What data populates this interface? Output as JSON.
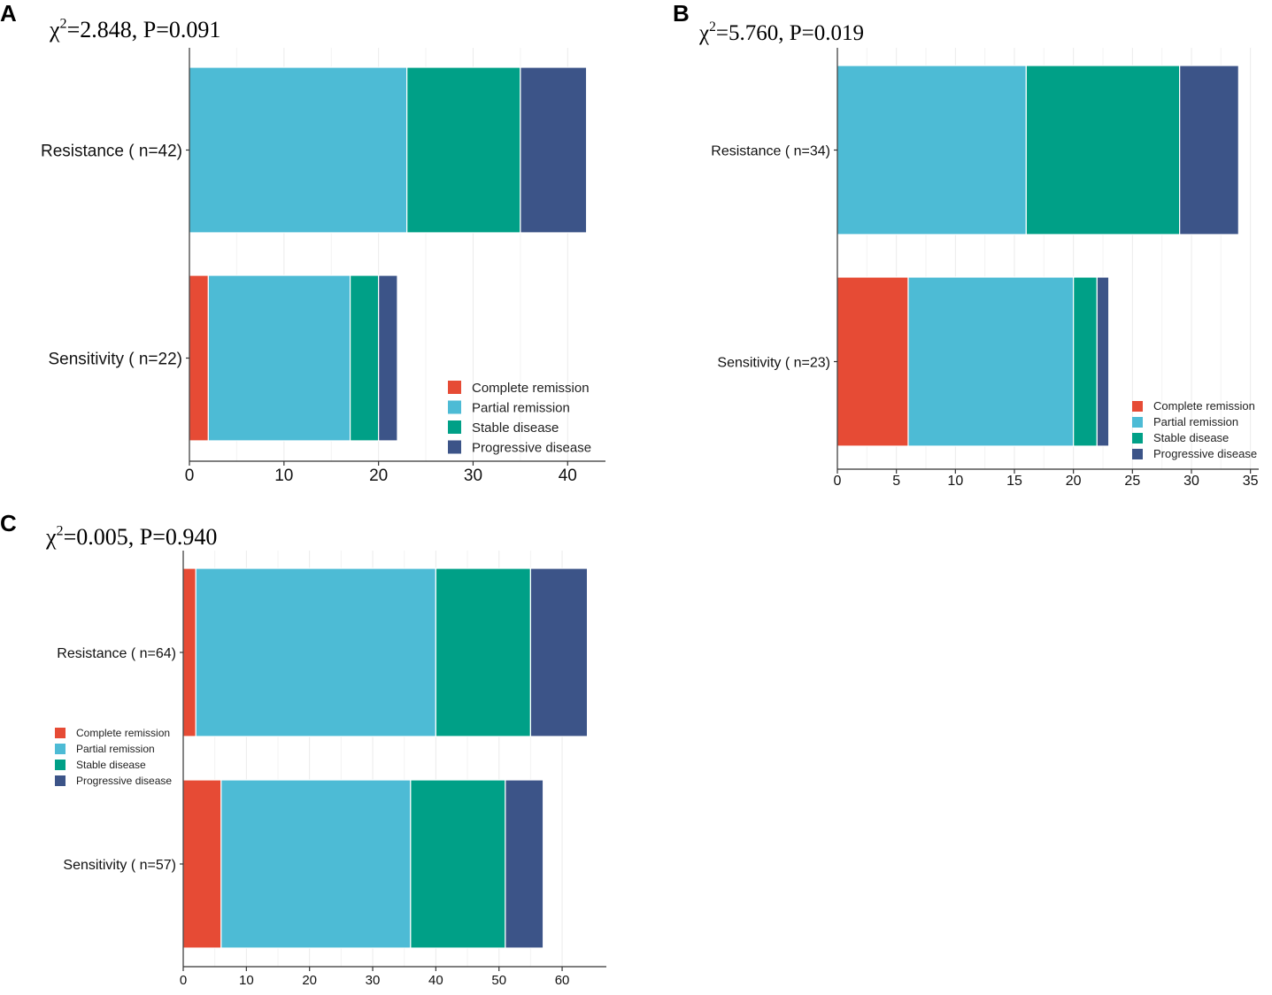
{
  "series_names": [
    "Complete remission",
    "Partial remission",
    "Stable disease",
    "Progressive disease"
  ],
  "colors": [
    "#E64B35",
    "#4DBBD5",
    "#00A087",
    "#3C5488"
  ],
  "chart_data": [
    {
      "panel": "A",
      "type": "bar",
      "orientation": "horizontal",
      "stacked": true,
      "stat_chi": "χ",
      "stat_sup": "2",
      "stat_rest": "=2.848, P=0.091",
      "categories": [
        "Resistance ( n=42)",
        "Sensitivity ( n=22)"
      ],
      "series": [
        {
          "name": "Complete remission",
          "values": [
            0,
            2
          ]
        },
        {
          "name": "Partial remission",
          "values": [
            23,
            15
          ]
        },
        {
          "name": "Stable disease",
          "values": [
            12,
            3
          ]
        },
        {
          "name": "Progressive disease",
          "values": [
            7,
            2
          ]
        }
      ],
      "xlim": [
        0,
        44
      ],
      "xticks": [
        0,
        10,
        20,
        30,
        40
      ],
      "legend": [
        "Complete remission",
        "Partial remission",
        "Stable disease",
        "Progressive disease"
      ],
      "legend_position": "bottom-right"
    },
    {
      "panel": "B",
      "type": "bar",
      "orientation": "horizontal",
      "stacked": true,
      "stat_chi": "χ",
      "stat_sup": "2",
      "stat_rest": "=5.760, P=0.019",
      "categories": [
        "Resistance ( n=34)",
        "Sensitivity ( n=23)"
      ],
      "series": [
        {
          "name": "Complete remission",
          "values": [
            0,
            6
          ]
        },
        {
          "name": "Partial remission",
          "values": [
            16,
            14
          ]
        },
        {
          "name": "Stable disease",
          "values": [
            13,
            2
          ]
        },
        {
          "name": "Progressive disease",
          "values": [
            5,
            1
          ]
        }
      ],
      "xlim": [
        0,
        35.7
      ],
      "xticks": [
        0,
        5,
        10,
        15,
        20,
        25,
        30,
        35
      ],
      "legend": [
        "Complete remission",
        "Partial remission",
        "Stable disease",
        "Progressive disease"
      ],
      "legend_position": "bottom-right"
    },
    {
      "panel": "C",
      "type": "bar",
      "orientation": "horizontal",
      "stacked": true,
      "stat_chi": "χ",
      "stat_sup": "2",
      "stat_rest": "=0.005, P=0.940",
      "categories": [
        "Resistance ( n=64)",
        "Sensitivity ( n=57)"
      ],
      "series": [
        {
          "name": "Complete remission",
          "values": [
            2,
            6
          ]
        },
        {
          "name": "Partial remission",
          "values": [
            38,
            30
          ]
        },
        {
          "name": "Stable disease",
          "values": [
            15,
            15
          ]
        },
        {
          "name": "Progressive disease",
          "values": [
            9,
            6
          ]
        }
      ],
      "xlim": [
        0,
        67
      ],
      "xticks": [
        0,
        10,
        20,
        30,
        40,
        50,
        60
      ],
      "legend": [
        "Complete remission",
        "Partial remission",
        "Stable disease",
        "Progressive disease"
      ],
      "legend_position": "middle-left"
    }
  ]
}
